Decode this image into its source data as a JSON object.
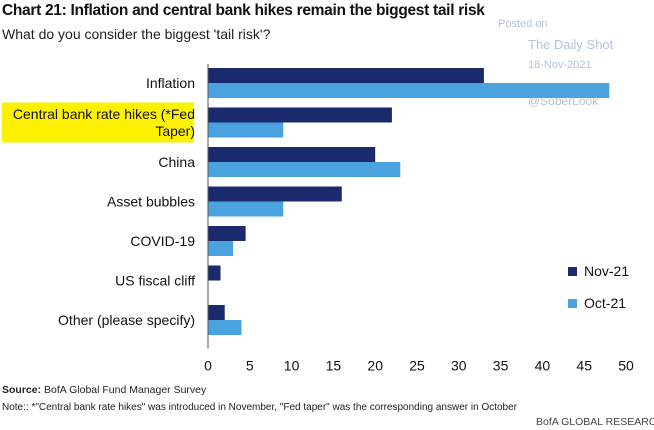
{
  "header": {
    "title": "Chart 21: Inflation and central bank hikes remain the biggest tail risk",
    "subtitle": "What do you consider the biggest 'tail risk'?"
  },
  "watermark": {
    "posted": "Posted on",
    "publisher": "The Daily Shot",
    "date": "18-Nov-2021",
    "handle": "@SoberLook"
  },
  "colors": {
    "nov21": "#1a2a6c",
    "oct21": "#4aa3df",
    "highlight": "#fff200"
  },
  "chart_data": {
    "type": "bar",
    "orientation": "horizontal",
    "categories": [
      "Inflation",
      "Central bank rate hikes (*Fed Taper)",
      "China",
      "Asset bubbles",
      "COVID-19",
      "US fiscal cliff",
      "Other (please specify)"
    ],
    "category_lines": [
      [
        "Inflation"
      ],
      [
        "Central bank rate hikes (*Fed",
        "Taper)"
      ],
      [
        "China"
      ],
      [
        "Asset bubbles"
      ],
      [
        "COVID-19"
      ],
      [
        "US fiscal cliff"
      ],
      [
        "Other (please specify)"
      ]
    ],
    "highlighted_category": "Central bank rate hikes (*Fed Taper)",
    "series": [
      {
        "name": "Nov-21",
        "values": [
          33,
          22,
          20,
          16,
          4.5,
          1.5,
          2
        ]
      },
      {
        "name": "Oct-21",
        "values": [
          48,
          9,
          23,
          9,
          3,
          null,
          4
        ]
      }
    ],
    "xlim": [
      0,
      50
    ],
    "xticks": [
      0,
      5,
      10,
      15,
      20,
      25,
      30,
      35,
      40,
      45,
      50
    ],
    "grid": false,
    "legend_position": "bottom-right"
  },
  "footer": {
    "source_label": "Source:",
    "source_text": "BofA Global Fund Manager Survey",
    "note": "Note:: *\"Central bank rate hikes\" was introduced  in November, \"Fed taper\" was the corresponding  answer in October",
    "brand": "BofA GLOBAL RESEARCH"
  }
}
